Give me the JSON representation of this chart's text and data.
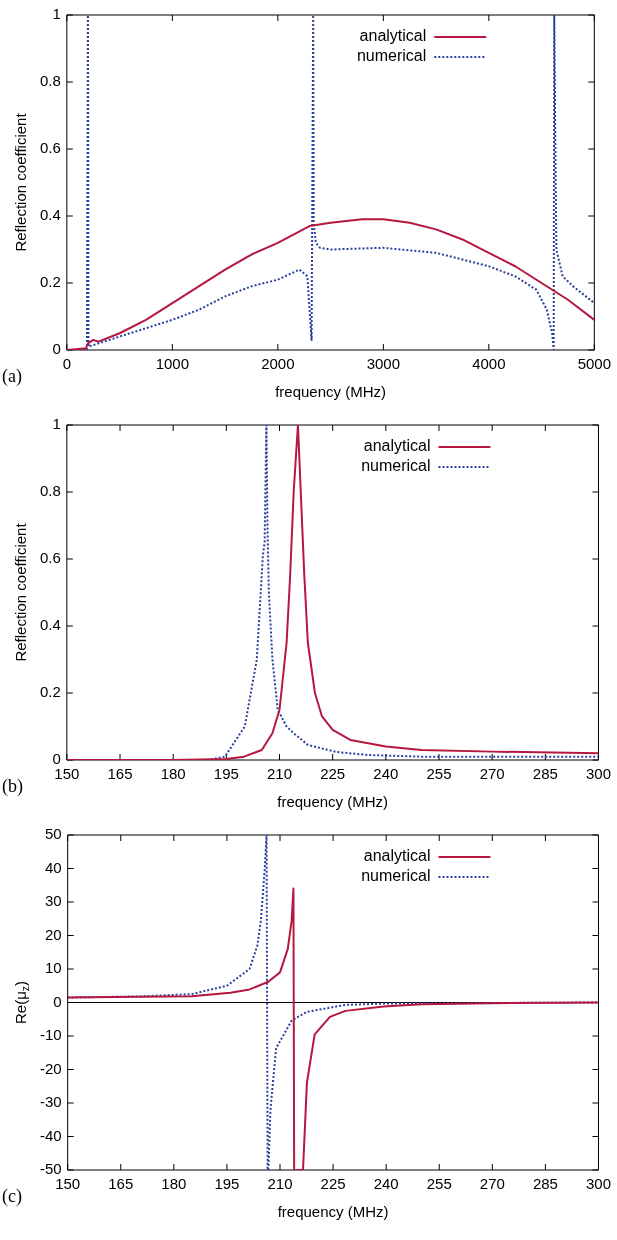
{
  "chart_data": [
    {
      "type": "line",
      "xlabel": "frequency (MHz)",
      "ylabel": "Reflection coefficient",
      "annotations": [
        "(a)"
      ],
      "xlim": [
        0,
        5000
      ],
      "xticks": [
        0,
        1000,
        2000,
        3000,
        4000,
        5000
      ],
      "ylim": [
        0,
        1
      ],
      "yticks": [
        0,
        0.2,
        0.4,
        0.6,
        0.8,
        1
      ],
      "grid": false,
      "legend": "top right",
      "series": [
        {
          "name": "analytical",
          "color": "#b5173f",
          "line_style": "solid",
          "x": [
            0,
            180,
            200,
            250,
            300,
            500,
            750,
            1000,
            1250,
            1500,
            1750,
            2000,
            2300,
            2500,
            2800,
            3000,
            3250,
            3500,
            3750,
            4000,
            4250,
            4500,
            4750,
            5000
          ],
          "values": [
            0,
            0.005,
            0.02,
            0.03,
            0.025,
            0.05,
            0.09,
            0.14,
            0.19,
            0.24,
            0.285,
            0.32,
            0.37,
            0.38,
            0.39,
            0.39,
            0.38,
            0.36,
            0.33,
            0.29,
            0.25,
            0.2,
            0.15,
            0.09
          ]
        },
        {
          "name": "numerical",
          "color": "#2a3f9d",
          "line_style": "dotted",
          "x": [
            0,
            190,
            200,
            205,
            300,
            500,
            750,
            1000,
            1250,
            1500,
            1750,
            2000,
            2205,
            2280,
            2320,
            2335,
            2340,
            2360,
            2400,
            2500,
            3000,
            3500,
            4000,
            4250,
            4450,
            4550,
            4600,
            4615,
            4620,
            4640,
            4700,
            4800,
            5000
          ],
          "values": [
            0,
            0,
            1,
            0.01,
            0.02,
            0.04,
            0.065,
            0.09,
            0.12,
            0.16,
            0.19,
            0.21,
            0.24,
            0.22,
            0.03,
            1,
            0.38,
            0.32,
            0.305,
            0.3,
            0.305,
            0.29,
            0.25,
            0.22,
            0.18,
            0.12,
            0.05,
            0,
            1,
            0.3,
            0.22,
            0.19,
            0.14
          ]
        }
      ]
    },
    {
      "type": "line",
      "xlabel": "frequency (MHz)",
      "ylabel": "Reflection coefficient",
      "annotations": [
        "(b)"
      ],
      "xlim": [
        150,
        300
      ],
      "xticks": [
        150,
        165,
        180,
        195,
        210,
        225,
        240,
        255,
        270,
        285,
        300
      ],
      "ylim": [
        0,
        1
      ],
      "yticks": [
        0,
        0.2,
        0.4,
        0.6,
        0.8,
        1
      ],
      "grid": false,
      "legend": "top right",
      "series": [
        {
          "name": "analytical",
          "color": "#b5173f",
          "line_style": "solid",
          "x": [
            150,
            180,
            195,
            200,
            205,
            208,
            210,
            212,
            213,
            214,
            215.2,
            216,
            217,
            218,
            220,
            222,
            225,
            230,
            240,
            250,
            270,
            300
          ],
          "values": [
            0,
            0,
            0.003,
            0.01,
            0.03,
            0.08,
            0.15,
            0.35,
            0.55,
            0.8,
            1,
            0.8,
            0.55,
            0.35,
            0.2,
            0.13,
            0.09,
            0.06,
            0.04,
            0.03,
            0.025,
            0.02
          ]
        },
        {
          "name": "numerical",
          "color": "#2a3f9d",
          "line_style": "dotted",
          "x": [
            150,
            190,
            194.6,
            200.2,
            203.6,
            205.3,
            205.8,
            206.3,
            206.6,
            207,
            208,
            209.5,
            212,
            214,
            218,
            226,
            235,
            250,
            300
          ],
          "values": [
            0,
            0,
            0.01,
            0.1,
            0.3,
            0.61,
            0.65,
            1,
            0.7,
            0.5,
            0.3,
            0.15,
            0.1,
            0.08,
            0.045,
            0.024,
            0.015,
            0.01,
            0.01
          ]
        }
      ]
    },
    {
      "type": "line",
      "xlabel": "frequency (MHz)",
      "ylabel": "Re(μ$_{z}$)",
      "annotations": [
        "(c)"
      ],
      "xlim": [
        150,
        300
      ],
      "xticks": [
        150,
        165,
        180,
        195,
        210,
        225,
        240,
        255,
        270,
        285,
        300
      ],
      "ylim": [
        -50,
        50
      ],
      "yticks": [
        -50,
        -40,
        -30,
        -20,
        -10,
        0,
        10,
        20,
        30,
        40,
        50
      ],
      "grid": false,
      "legend": "top right",
      "ref_lines": [
        {
          "axis": "y",
          "value": 0,
          "color": "#000000"
        }
      ],
      "series": [
        {
          "name": "analytical",
          "color": "#b5173f",
          "line_style": "solid",
          "x": [
            150,
            170,
            185,
            196,
            201.4,
            206.7,
            210,
            212.2,
            213.3,
            213.8,
            214,
            216.5,
            217.6,
            219.8,
            224.1,
            228.5,
            239.3,
            250,
            270,
            300
          ],
          "values": [
            1.5,
            1.7,
            1.9,
            2.9,
            3.9,
            6.2,
            9,
            16,
            24.5,
            34,
            -50,
            -50,
            -24,
            -9.5,
            -4.3,
            -2.5,
            -1.2,
            -0.5,
            -0.2,
            0
          ]
        },
        {
          "name": "numerical",
          "color": "#2a3f9d",
          "line_style": "dotted",
          "x": [
            150,
            170,
            185,
            195,
            201.4,
            203.6,
            204.6,
            205.7,
            206.2,
            206.5,
            206.7,
            207.3,
            208.9,
            213.3,
            217.6,
            228.5,
            240,
            300
          ],
          "values": [
            1.5,
            1.8,
            2.5,
            5,
            10,
            17,
            24.5,
            40,
            50,
            -50,
            -50,
            -32,
            -13.6,
            -5.4,
            -2.8,
            -0.7,
            -0.3,
            0
          ]
        }
      ]
    }
  ]
}
